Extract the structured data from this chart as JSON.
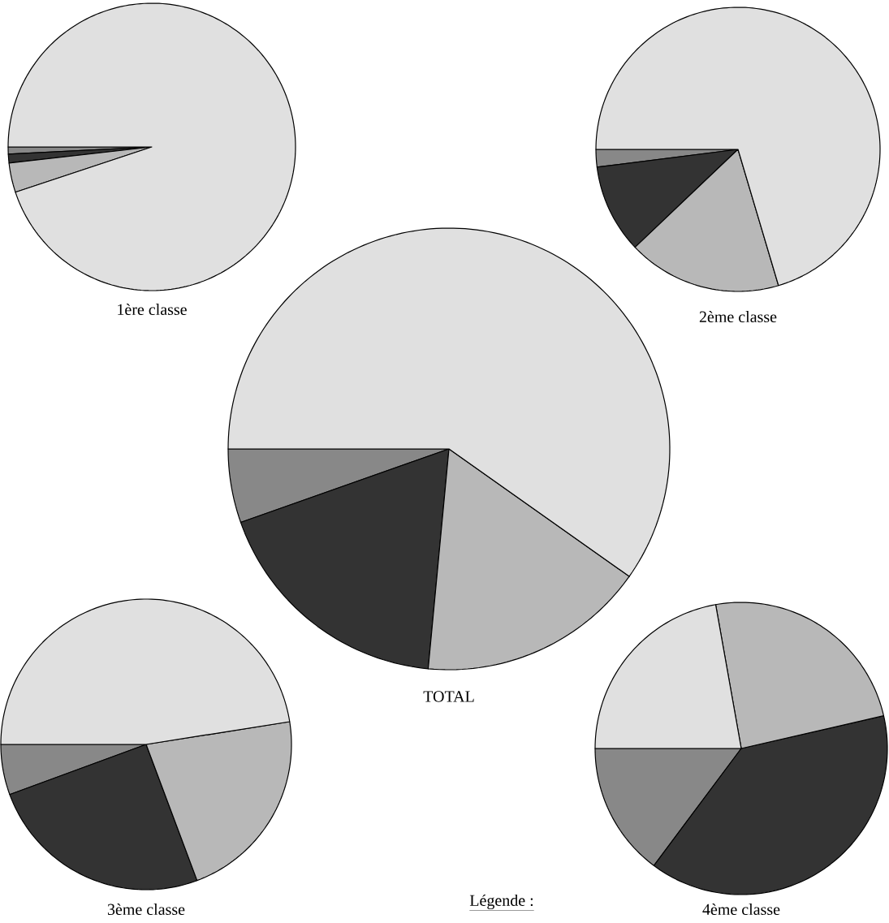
{
  "chart_data": [
    {
      "type": "pie",
      "title": "1ère classe",
      "categories": [
        null,
        null,
        null,
        null
      ],
      "values": [
        0.8,
        1.0,
        3.3,
        94.9
      ],
      "colors": [
        "#888888",
        "#333333",
        "#b8b8b8",
        "#e0e0e0"
      ]
    },
    {
      "type": "pie",
      "title": "2ème classe",
      "categories": [
        null,
        null,
        null,
        null
      ],
      "values": [
        2.0,
        10.1,
        17.5,
        70.4
      ],
      "colors": [
        "#888888",
        "#333333",
        "#b8b8b8",
        "#e0e0e0"
      ]
    },
    {
      "type": "pie",
      "title": "TOTAL",
      "categories": [
        null,
        null,
        null,
        null
      ],
      "values": [
        5.4,
        18.1,
        16.7,
        59.8
      ],
      "colors": [
        "#888888",
        "#333333",
        "#b8b8b8",
        "#e0e0e0"
      ]
    },
    {
      "type": "pie",
      "title": "3ème classe",
      "annotations": [
        "Légende :"
      ],
      "categories": [
        null,
        null,
        null,
        null
      ],
      "values": [
        5.6,
        25.1,
        21.8,
        47.5
      ],
      "colors": [
        "#888888",
        "#333333",
        "#b8b8b8",
        "#e0e0e0"
      ]
    },
    {
      "type": "pie",
      "title": "4ème classe",
      "categories": [
        null,
        null,
        null,
        null
      ],
      "values": [
        14.8,
        38.8,
        24.2,
        22.2
      ],
      "colors": [
        "#888888",
        "#333333",
        "#b8b8b8",
        "#e0e0e0"
      ]
    }
  ]
}
